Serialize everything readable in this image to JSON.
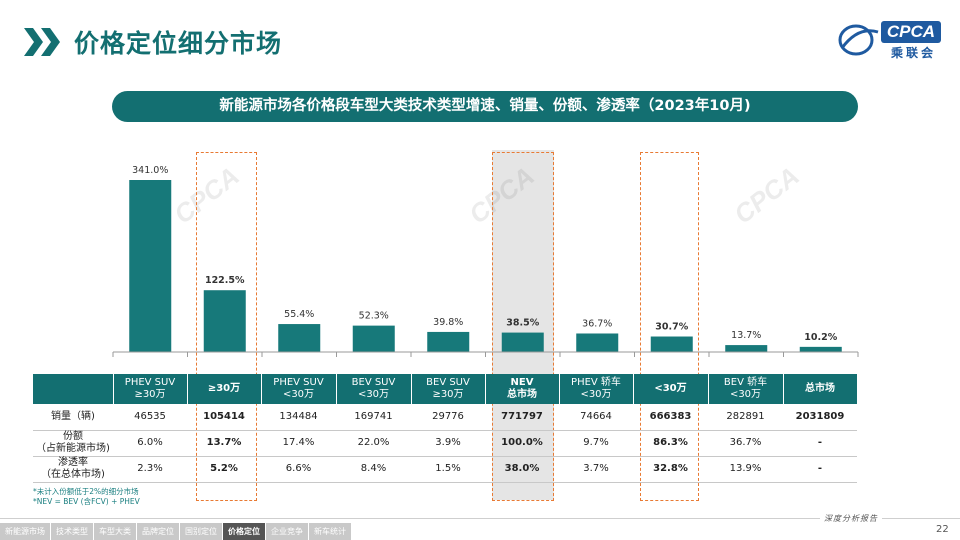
{
  "page": {
    "title": "价格定位细分市场",
    "logo_text": "CPCA",
    "logo_sub": "乘联会",
    "page_number": "22",
    "report_label": "深度分析报告"
  },
  "banner": "新能源市场各价格段车型大类技术类型增速、销量、份额、渗透率（2023年10月)",
  "nav": [
    {
      "label": "新能源市场",
      "active": false
    },
    {
      "label": "技术类型",
      "active": false
    },
    {
      "label": "车型大类",
      "active": false
    },
    {
      "label": "品牌定位",
      "active": false
    },
    {
      "label": "国别定位",
      "active": false
    },
    {
      "label": "价格定位",
      "active": true
    },
    {
      "label": "企业竞争",
      "active": false
    },
    {
      "label": "新车统计",
      "active": false
    }
  ],
  "colors": {
    "teal": "#136F71",
    "bar": "#17797A",
    "highlight": "#E87A33",
    "nav_active": "#555555"
  },
  "chart_data": {
    "type": "bar",
    "title": "新能源市场各价格段车型大类技术类型增速、销量、份额、渗透率（2023年10月)",
    "categories": [
      "PHEV SUV ≥30万",
      "≥30万",
      "PHEV SUV <30万",
      "BEV SUV <30万",
      "BEV SUV ≥30万",
      "NEV 总市场",
      "PHEV 轿车 <30万",
      "<30万",
      "BEV 轿车 <30万",
      "总市场"
    ],
    "series": [
      {
        "name": "增速",
        "values": [
          341.0,
          122.5,
          55.4,
          52.3,
          39.8,
          38.5,
          36.7,
          30.7,
          13.7,
          10.2
        ]
      }
    ],
    "value_labels": [
      "341.0%",
      "122.5%",
      "55.4%",
      "52.3%",
      "39.8%",
      "38.5%",
      "36.7%",
      "30.7%",
      "13.7%",
      "10.2%"
    ],
    "bold_labels": [
      false,
      true,
      false,
      false,
      false,
      true,
      false,
      true,
      false,
      true
    ],
    "ylim": [
      0,
      341
    ],
    "xlabel": "",
    "ylabel": "",
    "grid": false
  },
  "table": {
    "headers": [
      {
        "line1": "PHEV SUV",
        "line2": "≥30万",
        "bold": false
      },
      {
        "line1": "≥30万",
        "line2": "",
        "bold": true
      },
      {
        "line1": "PHEV SUV",
        "line2": "<30万",
        "bold": false
      },
      {
        "line1": "BEV SUV",
        "line2": "<30万",
        "bold": false
      },
      {
        "line1": "BEV SUV",
        "line2": "≥30万",
        "bold": false
      },
      {
        "line1": "NEV",
        "line2": "总市场",
        "bold": true
      },
      {
        "line1": "PHEV 轿车",
        "line2": "<30万",
        "bold": false
      },
      {
        "line1": "<30万",
        "line2": "",
        "bold": true
      },
      {
        "line1": "BEV 轿车",
        "line2": "<30万",
        "bold": false
      },
      {
        "line1": "总市场",
        "line2": "",
        "bold": true
      }
    ],
    "rows": [
      {
        "label1": "销量（辆)",
        "label2": "",
        "values": [
          "46535",
          "105414",
          "134484",
          "169741",
          "29776",
          "771797",
          "74664",
          "666383",
          "282891",
          "2031809"
        ]
      },
      {
        "label1": "份额",
        "label2": "（占新能源市场)",
        "values": [
          "6.0%",
          "13.7%",
          "17.4%",
          "22.0%",
          "3.9%",
          "100.0%",
          "9.7%",
          "86.3%",
          "36.7%",
          "-"
        ]
      },
      {
        "label1": "渗透率",
        "label2": "（在总体市场)",
        "values": [
          "2.3%",
          "5.2%",
          "6.6%",
          "8.4%",
          "1.5%",
          "38.0%",
          "3.7%",
          "32.8%",
          "13.9%",
          "-"
        ]
      }
    ],
    "bold_columns": [
      1,
      5,
      7,
      9
    ]
  },
  "notes": {
    "line1": "*未计入份额低于2%的细分市场",
    "line2": "*NEV = BEV (含FCV) + PHEV"
  }
}
